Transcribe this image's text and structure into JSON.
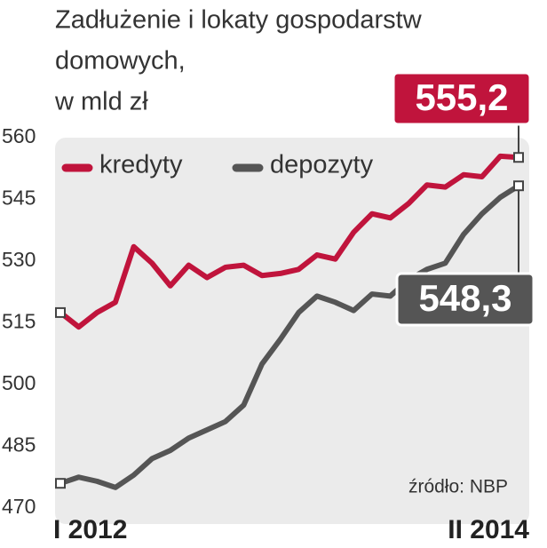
{
  "chart_data": {
    "type": "line",
    "title_lines": [
      "Zadłużenie i lokaty gospodarstw",
      "domowych,",
      "w mld zł"
    ],
    "source": "źródło: NBP",
    "categories": [
      "I 2012",
      null,
      null,
      null,
      null,
      null,
      null,
      null,
      null,
      null,
      null,
      null,
      null,
      null,
      null,
      null,
      null,
      null,
      null,
      null,
      null,
      null,
      null,
      null,
      null,
      "II 2014"
    ],
    "series": [
      {
        "name": "kredyty",
        "color": "#c0143c",
        "values": [
          517.5,
          514,
          517.5,
          520,
          533.5,
          529.5,
          524,
          529,
          526,
          528.5,
          529,
          526.5,
          527,
          528,
          531.5,
          530.5,
          537,
          541.5,
          540.5,
          544,
          548.5,
          548,
          551,
          550.5,
          555.5,
          555.2
        ],
        "value_labels": [
          null,
          null,
          null,
          null,
          null,
          null,
          null,
          null,
          null,
          null,
          null,
          null,
          null,
          null,
          null,
          null,
          null,
          null,
          null,
          null,
          null,
          null,
          null,
          null,
          null,
          "555,2"
        ]
      },
      {
        "name": "depozyty",
        "color": "#555555",
        "values": [
          476,
          477.5,
          476.5,
          475,
          478,
          482,
          484,
          487,
          489,
          491,
          495,
          505,
          511,
          517.5,
          521.5,
          520,
          518,
          522,
          521.5,
          525.5,
          528,
          529.5,
          536.5,
          541.5,
          545.5,
          548.3
        ],
        "value_labels": [
          null,
          null,
          null,
          null,
          null,
          null,
          null,
          null,
          null,
          null,
          null,
          null,
          null,
          null,
          null,
          null,
          null,
          null,
          null,
          null,
          null,
          null,
          null,
          null,
          null,
          "548,3"
        ]
      }
    ],
    "ylim": [
      470,
      560
    ],
    "yticks": [
      470,
      485,
      500,
      515,
      530,
      545,
      560
    ]
  }
}
